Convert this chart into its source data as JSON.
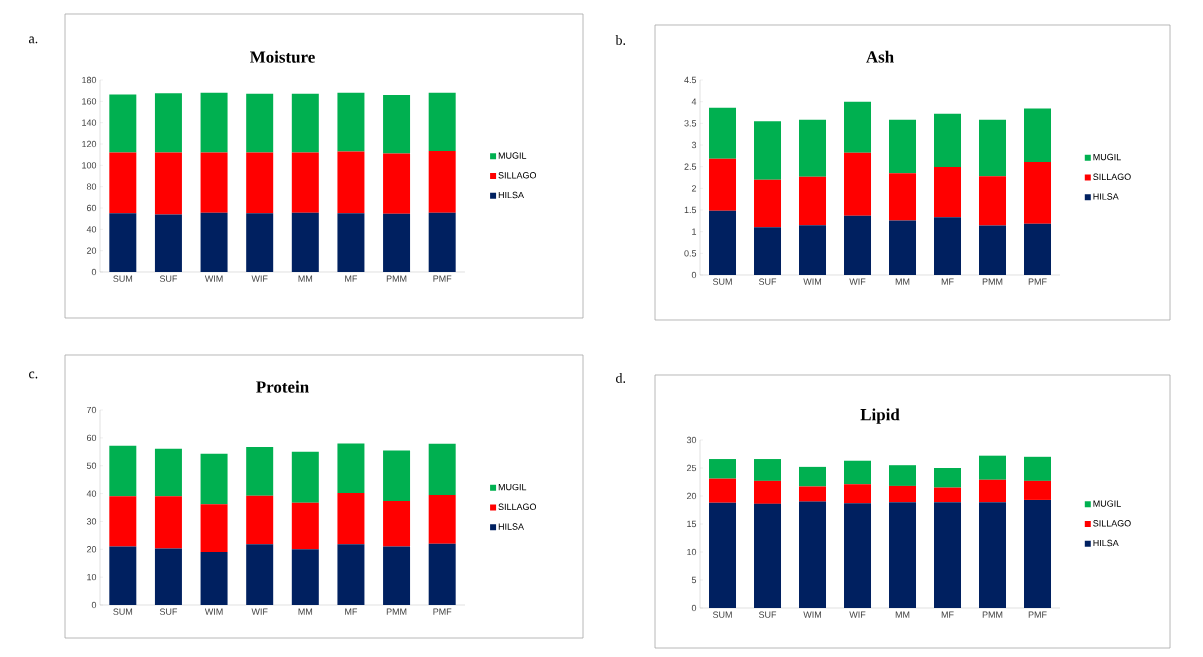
{
  "chart_data": [
    {
      "type": "bar",
      "stacked": true,
      "title": "Moisture",
      "annotations": [
        "a."
      ],
      "legend": "right",
      "categories": [
        "SUM",
        "SUF",
        "WIM",
        "WIF",
        "MM",
        "MF",
        "PMM",
        "PMF"
      ],
      "ylim": [
        0,
        180
      ],
      "yticks": [
        0,
        20,
        40,
        60,
        80,
        100,
        120,
        140,
        160,
        180
      ],
      "series": [
        {
          "name": "HILSA",
          "color": "#002060",
          "values": [
            55,
            54,
            55.5,
            55,
            55.5,
            55,
            54.5,
            55.5
          ]
        },
        {
          "name": "SILLAGO",
          "color": "#ff0000",
          "values": [
            57,
            58,
            56.5,
            57,
            56.5,
            58,
            56.5,
            58
          ]
        },
        {
          "name": "MUGIL",
          "color": "#00b050",
          "values": [
            54.5,
            55.5,
            56,
            55,
            55,
            55,
            55,
            54.5
          ]
        }
      ]
    },
    {
      "type": "bar",
      "stacked": true,
      "title": "Ash",
      "annotations": [
        "b."
      ],
      "legend": "right",
      "categories": [
        "SUM",
        "SUF",
        "WIM",
        "WIF",
        "MM",
        "MF",
        "PMM",
        "PMF"
      ],
      "ylim": [
        0,
        4.5
      ],
      "yticks": [
        0,
        0.5,
        1,
        1.5,
        2,
        2.5,
        3,
        3.5,
        4,
        4.5
      ],
      "series": [
        {
          "name": "HILSA",
          "color": "#002060",
          "values": [
            1.48,
            1.1,
            1.15,
            1.37,
            1.26,
            1.33,
            1.14,
            1.18
          ]
        },
        {
          "name": "SILLAGO",
          "color": "#ff0000",
          "values": [
            1.2,
            1.1,
            1.12,
            1.45,
            1.09,
            1.16,
            1.14,
            1.43
          ]
        },
        {
          "name": "MUGIL",
          "color": "#00b050",
          "values": [
            1.18,
            1.35,
            1.31,
            1.18,
            1.23,
            1.23,
            1.3,
            1.23
          ]
        }
      ]
    },
    {
      "type": "bar",
      "stacked": true,
      "title": "Protein",
      "annotations": [
        "c."
      ],
      "legend": "right",
      "categories": [
        "SUM",
        "SUF",
        "WIM",
        "WIF",
        "MM",
        "MF",
        "PMM",
        "PMF"
      ],
      "ylim": [
        0,
        70
      ],
      "yticks": [
        0,
        10,
        20,
        30,
        40,
        50,
        60,
        70
      ],
      "series": [
        {
          "name": "HILSA",
          "color": "#002060",
          "values": [
            21,
            20.3,
            19,
            21.8,
            20,
            21.8,
            21,
            22
          ]
        },
        {
          "name": "SILLAGO",
          "color": "#ff0000",
          "values": [
            18,
            18.7,
            17.2,
            17.4,
            16.7,
            18.4,
            16.3,
            17.5
          ]
        },
        {
          "name": "MUGIL",
          "color": "#00b050",
          "values": [
            18.2,
            17.1,
            18.1,
            17.5,
            18.3,
            17.8,
            18.2,
            18.4
          ]
        }
      ]
    },
    {
      "type": "bar",
      "stacked": true,
      "title": "Lipid",
      "annotations": [
        "d."
      ],
      "legend": "right",
      "categories": [
        "SUM",
        "SUF",
        "WIM",
        "WIF",
        "MM",
        "MF",
        "PMM",
        "PMF"
      ],
      "ylim": [
        0,
        30
      ],
      "yticks": [
        0,
        5,
        10,
        15,
        20,
        25,
        30
      ],
      "series": [
        {
          "name": "HILSA",
          "color": "#002060",
          "values": [
            18.8,
            18.6,
            19,
            18.7,
            18.9,
            18.9,
            18.9,
            19.3
          ]
        },
        {
          "name": "SILLAGO",
          "color": "#ff0000",
          "values": [
            4.3,
            4.1,
            2.7,
            3.4,
            2.9,
            2.6,
            4.0,
            3.4
          ]
        },
        {
          "name": "MUGIL",
          "color": "#00b050",
          "values": [
            3.5,
            3.9,
            3.5,
            4.2,
            3.7,
            3.5,
            4.3,
            4.3
          ]
        }
      ]
    }
  ]
}
